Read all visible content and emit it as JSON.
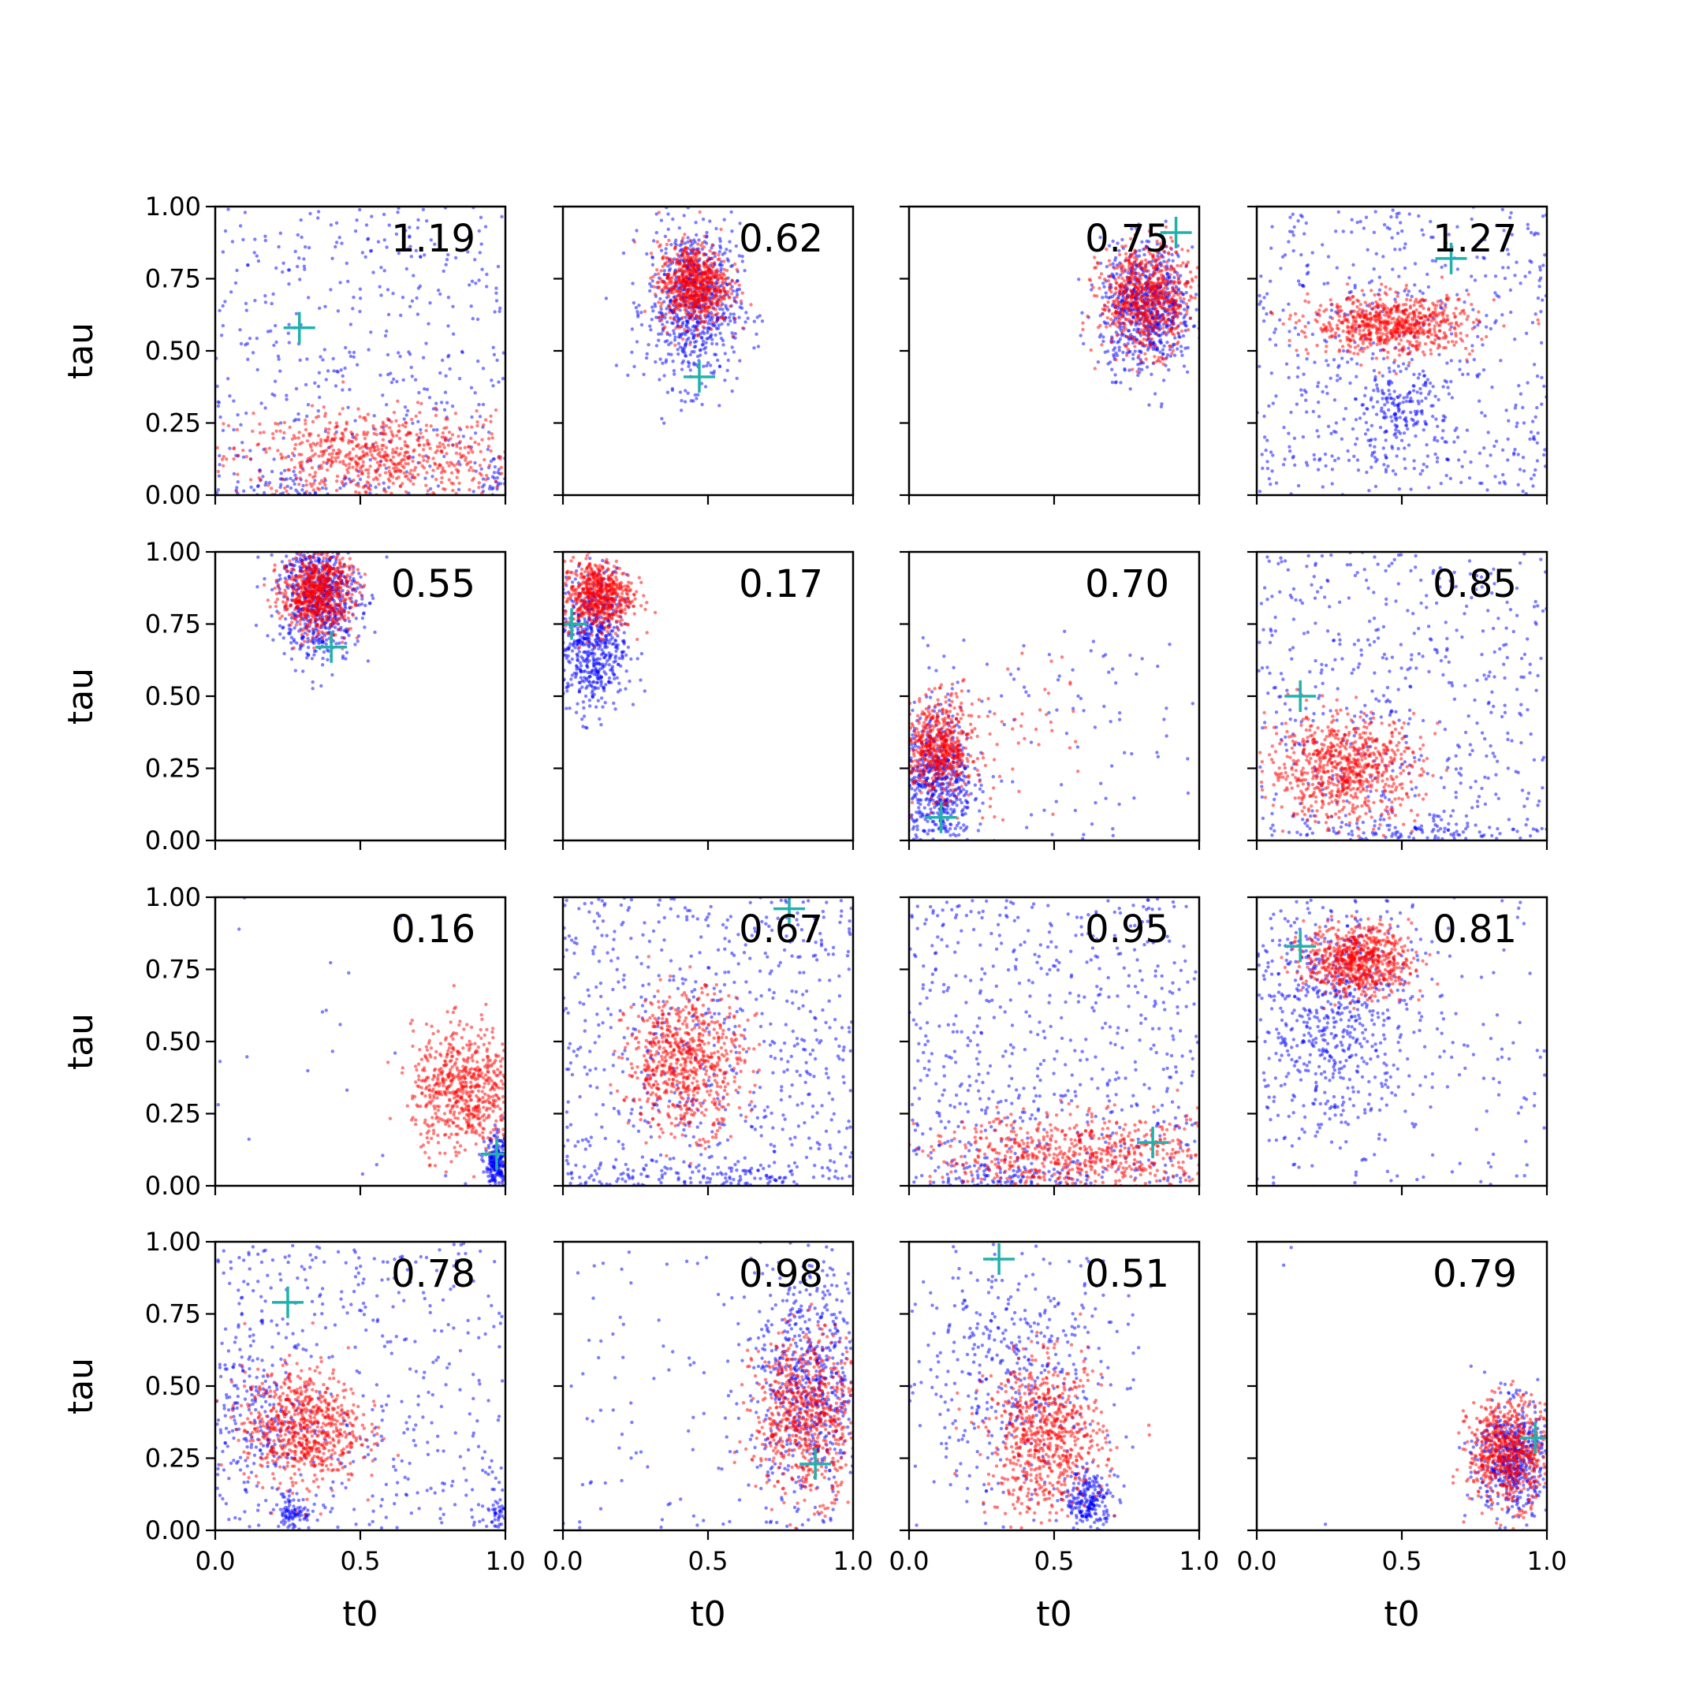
{
  "chart_data": {
    "type": "scatter",
    "layout": {
      "rows": 4,
      "cols": 4
    },
    "xlabel": "t0",
    "ylabel": "tau",
    "xlim": [
      0,
      1
    ],
    "ylim": [
      0,
      1
    ],
    "xticks": [
      "0.0",
      "0.5",
      "1.0"
    ],
    "yticks": [
      "0.00",
      "0.25",
      "0.50",
      "0.75",
      "1.00"
    ],
    "colors": {
      "prior": "#0000ff",
      "posterior": "#ff0000",
      "truth": "#20b2aa"
    },
    "panels": [
      {
        "value": "1.19",
        "truth": [
          0.29,
          0.58
        ],
        "blue": [
          {
            "cx": 0.5,
            "cy": 0.5,
            "sx": 0.29,
            "sy": 0.29,
            "n": 420,
            "uniform": true
          },
          {
            "cx": 0.25,
            "cy": 0.03,
            "sx": 0.12,
            "sy": 0.03,
            "n": 60
          },
          {
            "cx": 0.97,
            "cy": 0.04,
            "sx": 0.03,
            "sy": 0.04,
            "n": 40
          }
        ],
        "red": [
          {
            "cx": 0.55,
            "cy": 0.13,
            "sx": 0.25,
            "sy": 0.08,
            "n": 700
          }
        ]
      },
      {
        "value": "0.62",
        "truth": [
          0.47,
          0.41
        ],
        "blue": [
          {
            "cx": 0.45,
            "cy": 0.66,
            "sx": 0.08,
            "sy": 0.14,
            "n": 700
          }
        ],
        "red": [
          {
            "cx": 0.45,
            "cy": 0.73,
            "sx": 0.06,
            "sy": 0.07,
            "n": 700
          }
        ]
      },
      {
        "value": "0.75",
        "truth": [
          0.92,
          0.91
        ],
        "blue": [
          {
            "cx": 0.82,
            "cy": 0.65,
            "sx": 0.08,
            "sy": 0.11,
            "n": 700
          }
        ],
        "red": [
          {
            "cx": 0.82,
            "cy": 0.68,
            "sx": 0.08,
            "sy": 0.09,
            "n": 700
          }
        ]
      },
      {
        "value": "1.27",
        "truth": [
          0.67,
          0.82
        ],
        "blue": [
          {
            "cx": 0.5,
            "cy": 0.5,
            "sx": 0.29,
            "sy": 0.29,
            "n": 550,
            "uniform": true
          },
          {
            "cx": 0.48,
            "cy": 0.28,
            "sx": 0.08,
            "sy": 0.08,
            "n": 160
          }
        ],
        "red": [
          {
            "cx": 0.47,
            "cy": 0.59,
            "sx": 0.14,
            "sy": 0.05,
            "n": 700
          }
        ]
      },
      {
        "value": "0.55",
        "truth": [
          0.4,
          0.67
        ],
        "blue": [
          {
            "cx": 0.36,
            "cy": 0.85,
            "sx": 0.07,
            "sy": 0.11,
            "n": 700
          }
        ],
        "red": [
          {
            "cx": 0.35,
            "cy": 0.86,
            "sx": 0.06,
            "sy": 0.07,
            "n": 700
          }
        ]
      },
      {
        "value": "0.17",
        "truth": [
          0.03,
          0.75
        ],
        "blue": [
          {
            "cx": 0.1,
            "cy": 0.68,
            "sx": 0.06,
            "sy": 0.12,
            "n": 600
          }
        ],
        "red": [
          {
            "cx": 0.12,
            "cy": 0.85,
            "sx": 0.06,
            "sy": 0.06,
            "n": 600
          }
        ]
      },
      {
        "value": "0.70",
        "truth": [
          0.11,
          0.08
        ],
        "blue": [
          {
            "cx": 0.1,
            "cy": 0.2,
            "sx": 0.06,
            "sy": 0.12,
            "n": 550
          },
          {
            "cx": 0.5,
            "cy": 0.3,
            "sx": 0.28,
            "sy": 0.25,
            "n": 130,
            "uniform": true
          }
        ],
        "red": [
          {
            "cx": 0.1,
            "cy": 0.32,
            "sx": 0.06,
            "sy": 0.08,
            "n": 550
          },
          {
            "cx": 0.3,
            "cy": 0.35,
            "sx": 0.15,
            "sy": 0.15,
            "n": 60
          }
        ]
      },
      {
        "value": "0.85",
        "truth": [
          0.15,
          0.5
        ],
        "blue": [
          {
            "cx": 0.5,
            "cy": 0.5,
            "sx": 0.29,
            "sy": 0.29,
            "n": 500,
            "uniform": true
          },
          {
            "cx": 0.6,
            "cy": 0.03,
            "sx": 0.25,
            "sy": 0.03,
            "n": 120
          }
        ],
        "red": [
          {
            "cx": 0.3,
            "cy": 0.25,
            "sx": 0.13,
            "sy": 0.09,
            "n": 750
          }
        ]
      },
      {
        "value": "0.16",
        "truth": [
          0.97,
          0.11
        ],
        "blue": [
          {
            "cx": 0.97,
            "cy": 0.07,
            "sx": 0.02,
            "sy": 0.05,
            "n": 250
          },
          {
            "cx": 0.4,
            "cy": 0.5,
            "sx": 0.3,
            "sy": 0.3,
            "n": 25,
            "uniform": true
          }
        ],
        "red": [
          {
            "cx": 0.86,
            "cy": 0.33,
            "sx": 0.09,
            "sy": 0.11,
            "n": 650
          }
        ]
      },
      {
        "value": "0.67",
        "truth": [
          0.78,
          0.96
        ],
        "blue": [
          {
            "cx": 0.5,
            "cy": 0.5,
            "sx": 0.29,
            "sy": 0.29,
            "n": 650,
            "uniform": true
          },
          {
            "cx": 0.45,
            "cy": 0.03,
            "sx": 0.25,
            "sy": 0.03,
            "n": 120
          }
        ],
        "red": [
          {
            "cx": 0.42,
            "cy": 0.43,
            "sx": 0.1,
            "sy": 0.12,
            "n": 700
          }
        ]
      },
      {
        "value": "0.95",
        "truth": [
          0.84,
          0.15
        ],
        "blue": [
          {
            "cx": 0.5,
            "cy": 0.5,
            "sx": 0.29,
            "sy": 0.29,
            "n": 600,
            "uniform": true
          },
          {
            "cx": 0.3,
            "cy": 0.03,
            "sx": 0.2,
            "sy": 0.03,
            "n": 120
          }
        ],
        "red": [
          {
            "cx": 0.6,
            "cy": 0.1,
            "sx": 0.27,
            "sy": 0.07,
            "n": 700
          }
        ]
      },
      {
        "value": "0.81",
        "truth": [
          0.15,
          0.83
        ],
        "blue": [
          {
            "cx": 0.25,
            "cy": 0.6,
            "sx": 0.15,
            "sy": 0.22,
            "n": 650
          },
          {
            "cx": 0.5,
            "cy": 0.5,
            "sx": 0.29,
            "sy": 0.29,
            "n": 150,
            "uniform": true
          }
        ],
        "red": [
          {
            "cx": 0.35,
            "cy": 0.78,
            "sx": 0.09,
            "sy": 0.06,
            "n": 700
          }
        ]
      },
      {
        "value": "0.78",
        "truth": [
          0.25,
          0.79
        ],
        "blue": [
          {
            "cx": 0.5,
            "cy": 0.5,
            "sx": 0.29,
            "sy": 0.29,
            "n": 420,
            "uniform": true
          },
          {
            "cx": 0.12,
            "cy": 0.4,
            "sx": 0.1,
            "sy": 0.15,
            "n": 200
          },
          {
            "cx": 0.27,
            "cy": 0.06,
            "sx": 0.03,
            "sy": 0.03,
            "n": 90
          },
          {
            "cx": 0.97,
            "cy": 0.06,
            "sx": 0.02,
            "sy": 0.03,
            "n": 40
          }
        ],
        "red": [
          {
            "cx": 0.3,
            "cy": 0.36,
            "sx": 0.1,
            "sy": 0.1,
            "n": 700
          }
        ]
      },
      {
        "value": "0.98",
        "truth": [
          0.87,
          0.23
        ],
        "blue": [
          {
            "cx": 0.85,
            "cy": 0.5,
            "sx": 0.1,
            "sy": 0.2,
            "n": 600
          },
          {
            "cx": 0.5,
            "cy": 0.5,
            "sx": 0.29,
            "sy": 0.29,
            "n": 130,
            "uniform": true
          }
        ],
        "red": [
          {
            "cx": 0.84,
            "cy": 0.4,
            "sx": 0.09,
            "sy": 0.14,
            "n": 700
          }
        ]
      },
      {
        "value": "0.51",
        "truth": [
          0.31,
          0.94
        ],
        "blue": [
          {
            "cx": 0.35,
            "cy": 0.55,
            "sx": 0.2,
            "sy": 0.22,
            "n": 450
          },
          {
            "cx": 0.62,
            "cy": 0.1,
            "sx": 0.04,
            "sy": 0.05,
            "n": 220
          }
        ],
        "red": [
          {
            "cx": 0.47,
            "cy": 0.32,
            "sx": 0.1,
            "sy": 0.13,
            "n": 700
          }
        ]
      },
      {
        "value": "0.79",
        "truth": [
          0.96,
          0.32
        ],
        "blue": [
          {
            "cx": 0.88,
            "cy": 0.25,
            "sx": 0.06,
            "sy": 0.1,
            "n": 500
          },
          {
            "cx": 0.4,
            "cy": 0.5,
            "sx": 0.3,
            "sy": 0.3,
            "n": 5,
            "uniform": true
          }
        ],
        "red": [
          {
            "cx": 0.87,
            "cy": 0.27,
            "sx": 0.07,
            "sy": 0.09,
            "n": 650
          }
        ]
      }
    ]
  }
}
